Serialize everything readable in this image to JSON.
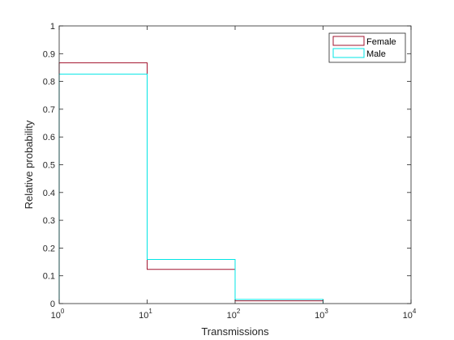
{
  "chart_data": {
    "type": "line",
    "subtype": "stairs-histogram",
    "title": "",
    "xlabel": "Transmissions",
    "ylabel": "Relative probability",
    "xscale": "log",
    "xlim": [
      1,
      10000
    ],
    "ylim": [
      0,
      1
    ],
    "grid": false,
    "legend_location": "top-right",
    "x_ticks": [
      {
        "value": 1,
        "base": "10",
        "exp": "0"
      },
      {
        "value": 10,
        "base": "10",
        "exp": "1"
      },
      {
        "value": 100,
        "base": "10",
        "exp": "2"
      },
      {
        "value": 1000,
        "base": "10",
        "exp": "3"
      },
      {
        "value": 10000,
        "base": "10",
        "exp": "4"
      }
    ],
    "y_ticks": [
      {
        "value": 0,
        "label": "0"
      },
      {
        "value": 0.1,
        "label": "0.1"
      },
      {
        "value": 0.2,
        "label": "0.2"
      },
      {
        "value": 0.3,
        "label": "0.3"
      },
      {
        "value": 0.4,
        "label": "0.4"
      },
      {
        "value": 0.5,
        "label": "0.5"
      },
      {
        "value": 0.6,
        "label": "0.6"
      },
      {
        "value": 0.7,
        "label": "0.7"
      },
      {
        "value": 0.8,
        "label": "0.8"
      },
      {
        "value": 0.9,
        "label": "0.9"
      },
      {
        "value": 1,
        "label": "1"
      }
    ],
    "bin_edges": [
      1,
      10,
      100,
      1000
    ],
    "series": [
      {
        "name": "Female",
        "color": "#a2142f",
        "values": [
          0.867,
          0.123,
          0.01
        ]
      },
      {
        "name": "Male",
        "color": "#00e5e5",
        "values": [
          0.826,
          0.159,
          0.015
        ]
      }
    ]
  }
}
